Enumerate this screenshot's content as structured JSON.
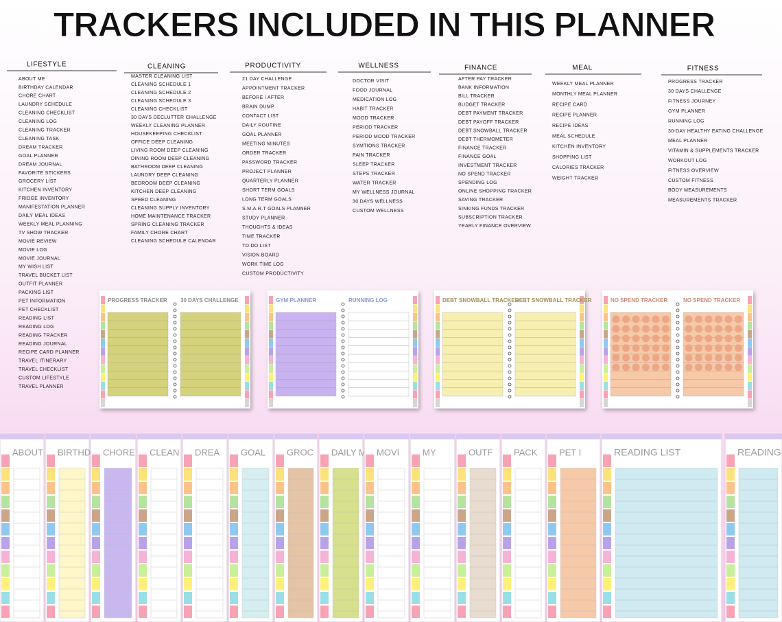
{
  "header": {
    "title": "TRACKERS INCLUDED IN THIS PLANNER"
  },
  "columns": [
    {
      "heading": "LIFESTYLE",
      "items": [
        "ABOUT ME",
        "BIRTHDAY CALENDAR",
        "CHORE CHART",
        "LAUNDRY SCHEDULE",
        "CLEANING CHECKLIST",
        "CLEANING LOG",
        "CLEANING TRACKER",
        "CLEANING TASK",
        "DREAM TRACKER",
        "GOAL PLANNER",
        "DREAM JOURNAL",
        "FAVORITE STICKERS",
        "GROCERY LIST",
        "KITCHEN INVENTORY",
        "FRIDGE INVENTORY",
        "MANIFESTATION PLANNER",
        "DAILY MEAL IDEAS",
        "WEEKLY MEAL PLANNING",
        "TV SHOW TRACKER",
        "MOVIE REVIEW",
        "MOVIE LOG",
        "MOVIE JOURNAL",
        "MY WISH LIST",
        "TRAVEL BUCKET LIST",
        "OUTFIT PLANNER",
        "PACKING LIST",
        "PET INFORMATION",
        "PET CHECKLIST",
        "READING LIST",
        "READING LOG",
        "READING TRACKER",
        "READING JOURNAL",
        "RECIPE CARD PLANNER",
        "TRAVEL ITINERARY",
        "TRAVEL CHECKLIST",
        "CUSTOM LIFESTYLE",
        "TRAVEL PLANNER"
      ]
    },
    {
      "heading": "CLEANING",
      "items": [
        "MASTER CLEANING LIST",
        "CLEANING SCHEDULE 1",
        "CLEANING SCHEDULE 2",
        "CLEANING SCHEDULE 3",
        "CLEANING CHECKLIST",
        "30 DAYS DECLUTTER CHALLENGE",
        "WEEKLY CLEANING PLANNER",
        "HOUSEKEEPING CHECKLIST",
        "OFFICE DEEP CLEANING",
        "LIVING ROOM DEEP CLEANING",
        "DINING ROOM DEEP CLEANING",
        "BATHROOM DEEP CLEANING",
        "LAUNDRY DEEP CLEANING",
        "BEDROOM DEEP CLEANING",
        "KITCHEN DEEP CLEANING",
        "SPEED CLEANING",
        "CLEANING SUPPLY INVENTORY",
        "HOME MAINTENANCE TRACKER",
        "SPRING CLEANING TRACKER",
        "FAMILY CHORE CHART",
        "CLEANING SCHEDULE CALENDAR"
      ]
    },
    {
      "heading": "PRODUCTIVITY",
      "items": [
        "21 DAY CHALLENGE",
        "APPOINTMENT TRACKER",
        "BEFORE / AFTER",
        "BRAIN DUMP",
        "CONTACT LIST",
        "DAILY ROUTINE",
        "GOAL PLANNER",
        "MEETING MINUTES",
        "ORDER TRACKER",
        "PASSWORD TRACKER",
        "PROJECT PLANNER",
        "QUARTERLY PLANNER",
        "SHORT TERM GOALS",
        "LONG TERM GOALS",
        "S.M.A.R.T GOALS PLANNER",
        "STUDY PLANNER",
        "THOUGHTS & IDEAS",
        "TIME TRACKER",
        "TO DO LIST",
        "VISION BOARD",
        "WORK TIME LOG",
        "CUSTOM PRODUCTIVITY"
      ]
    },
    {
      "heading": "WELLNESS",
      "items": [
        "DOCTOR VISIT",
        "FOOD JOURNAL",
        "MEDICATION LOG",
        "HABIT TRACKER",
        "MOOD TRACKER",
        "PERIOD TRACKER",
        "PERIOD MOOD TRACKER",
        "SYMTIONS TRACKER",
        "PAIN TRACKER",
        "SLEEP TRACKER",
        "STEPS TRACKER",
        "WATER TRACKER",
        "MY WELLNESS JOURNAL",
        "30 DAYS WELLNESS",
        "CUSTOM WELLNESS"
      ]
    },
    {
      "heading": "FINANCE",
      "items": [
        "AFTER PAY TRACKER",
        "BANK INFORMATION",
        "BILL TRACKER",
        "BUDGET TRACKER",
        "DEBT PAYMENT TRACKER",
        "DEBT PAYOFF TRACKER",
        "DEBT SNOWBALL TRACKER",
        "DEBT THERMOMETER",
        "FINANCE TRACKER",
        "FINANCE GOAL",
        "INVESTMENT TRACKER",
        "NO SPEND TRACKER",
        "SPENDING LOG",
        "ONLINE SHOPPING TRACKER",
        "SAVING TRACKER",
        "SINKING FUNDS TRACKER",
        "SUBSCRIPTION TRACKER",
        "YEARLY FINANCE OVERVIEW"
      ]
    },
    {
      "heading": "MEAL",
      "items": [
        "WEEKLY MEAL PLANNER",
        "MONTHLY MEAL PLANNER",
        "RECIPE CARD",
        "RECIPE PLANNER",
        "RECIPE IDEAS",
        "MEAL SCHEDULE",
        "KITCHEN INVENTORY",
        "SHOPPING LIST",
        "CALORIES TRACKER",
        "WEIGHT TRACKER"
      ]
    },
    {
      "heading": "FITNESS",
      "items": [
        "PROGRESS TRACKER",
        "30 DAYS CHALLENGE",
        "FITNESS JOURNEY",
        "GYM PLANNER",
        "RUNNING LOG",
        "30-DAY HEALTHY EATING CHALLENGE",
        "MEAL PLANNER",
        "VITAMIN & SUPPLEMENTS TRACKER",
        "WORKOUT LOG",
        "FITNESS OVERVIEW",
        "CUSTOM FITNESS",
        "BODY MEASUREMENTS",
        "MEASUREMENTS TRACKER"
      ]
    }
  ],
  "previews": [
    {
      "left": "PROGRESS TRACKER",
      "right": "30 DAYS CHALLENGE"
    },
    {
      "left": "GYM PLANNER",
      "right": "RUNNING LOG"
    },
    {
      "left": "DEBT SNOWBALL TRACKER",
      "right": "DEBT SNOWBALL TRACKER"
    },
    {
      "left": "NO SPEND TRACKER",
      "right": "NO SPEND TRACKER"
    }
  ],
  "strip": [
    "ABOUT",
    "BIRTHD",
    "CHORE",
    "CLEAN",
    "DREA",
    "GOAL",
    "GROC",
    "DAILY M",
    "MOVI",
    "MY",
    "OUTF",
    "PACK",
    "PET I",
    "READING LIST",
    "READING L"
  ]
}
